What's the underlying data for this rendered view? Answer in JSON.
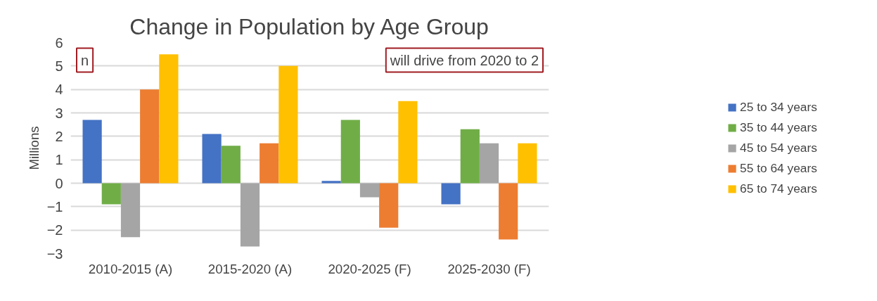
{
  "chart_data": {
    "type": "bar",
    "title": "Change in Population by Age Group",
    "ylabel": "Millions",
    "categories": [
      "2010-2015 (A)",
      "2015-2020 (A)",
      "2020-2025 (F)",
      "2025-2030 (F)"
    ],
    "series": [
      {
        "name": "25 to 34 years",
        "color": "#4472c4",
        "values": [
          2.7,
          2.1,
          0.1,
          -0.9
        ]
      },
      {
        "name": "35 to 44 years",
        "color": "#70ad47",
        "values": [
          -0.9,
          1.6,
          2.7,
          2.3
        ]
      },
      {
        "name": "45 to 54 years",
        "color": "#a5a5a5",
        "values": [
          -2.3,
          -2.7,
          -0.6,
          1.7
        ]
      },
      {
        "name": "55 to 64 years",
        "color": "#ed7d31",
        "values": [
          4.0,
          1.7,
          -1.9,
          -2.4
        ]
      },
      {
        "name": "65 to 74 years",
        "color": "#ffc000",
        "values": [
          5.5,
          5.0,
          3.5,
          1.7
        ]
      }
    ],
    "ylim": [
      -3,
      6
    ],
    "yticks": [
      -3,
      -2,
      -1,
      0,
      1,
      2,
      3,
      4,
      5,
      6
    ],
    "grid": "y",
    "legend": "right",
    "annotations": [
      "n",
      "will drive from 2020 to 2"
    ]
  }
}
